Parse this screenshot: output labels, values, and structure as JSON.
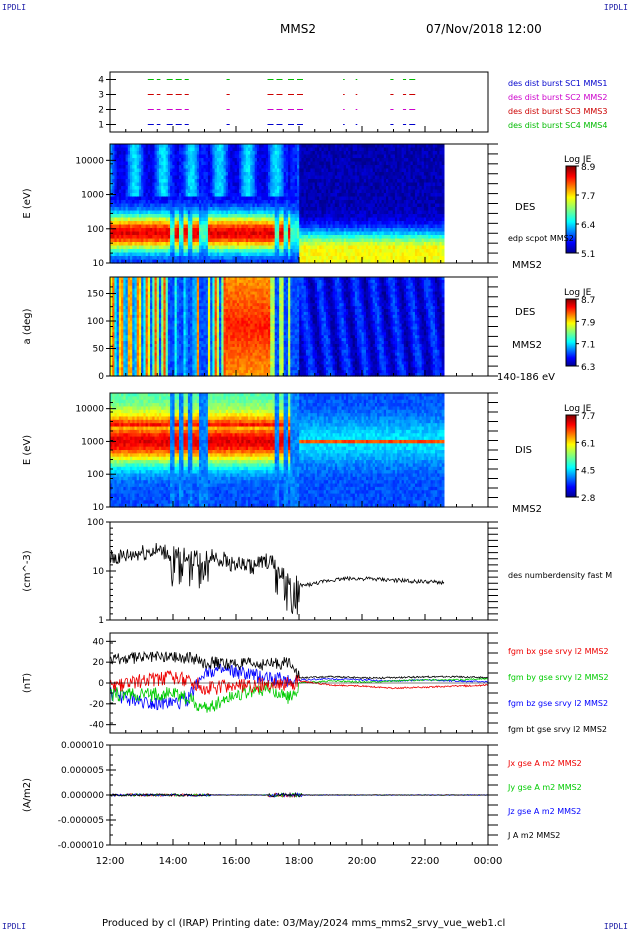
{
  "page": {
    "corner_tl": "IPDLI",
    "corner_tr": "IPDLI",
    "corner_bl": "IPDLI",
    "corner_br": "IPDLI",
    "spacecraft": "MMS2",
    "datetime": "07/Nov/2018 12:00",
    "footer": "Produced by cl (IRAP)   Printing date: 03/May/2024   mms_mms2_srvy_vue_web1.cl"
  },
  "colors": {
    "mms1": "#0000cc",
    "mms2": "#cc00cc",
    "mms3": "#cc0000",
    "mms4": "#00bb00",
    "bx": "#ee0000",
    "by": "#00cc00",
    "bz": "#0000ff",
    "bt": "#000000"
  },
  "xaxis": {
    "tick_labels": [
      "12:00",
      "14:00",
      "16:00",
      "18:00",
      "20:00",
      "22:00",
      "00:00"
    ],
    "hours": [
      12,
      14,
      16,
      18,
      20,
      22,
      24
    ]
  },
  "chart_data": [
    {
      "type": "scatter",
      "id": "burst",
      "yticks": [
        "1",
        "2",
        "3",
        "4"
      ],
      "ylim": [
        0.5,
        4.5
      ],
      "legend": [
        "des dist burst SC1 MMS1",
        "des dist burst SC2 MMS2",
        "des dist burst SC3 MMS3",
        "des dist burst SC4 MMS4"
      ],
      "intervals": [
        [
          13.2,
          13.6
        ],
        [
          13.8,
          14.5
        ],
        [
          15.7,
          15.8
        ],
        [
          17.0,
          17.5
        ],
        [
          17.65,
          18.2
        ],
        [
          19.4,
          19.45
        ],
        [
          19.8,
          19.85
        ],
        [
          20.9,
          21.0
        ],
        [
          21.3,
          21.4
        ],
        [
          21.5,
          21.7
        ]
      ]
    },
    {
      "type": "heatmap",
      "id": "des_energy",
      "ylabel": "E (eV)",
      "yticks": [
        "10",
        "100",
        "1000",
        "10000"
      ],
      "instrument": "DES",
      "side_label_a": "edp scpot MMS2",
      "side_label_b": "MMS2",
      "colorbar_title": "Log JE",
      "colorbar_ticks": [
        "8.9",
        "7.7",
        "6.4",
        "5.1"
      ],
      "peak_energy_ev": 75,
      "data_end_hour": 22.6
    },
    {
      "type": "heatmap",
      "id": "des_pitch",
      "ylabel": "a (deg)",
      "yticks": [
        "0",
        "50",
        "100",
        "150"
      ],
      "ylim": [
        0,
        180
      ],
      "instrument": "DES",
      "side_label_a": "MMS2",
      "side_label_b": "140-186 eV",
      "colorbar_title": "Log JE",
      "colorbar_ticks": [
        "8.7",
        "7.9",
        "7.1",
        "6.3"
      ],
      "data_end_hour": 22.6
    },
    {
      "type": "heatmap",
      "id": "dis_energy",
      "ylabel": "E (eV)",
      "yticks": [
        "10",
        "100",
        "1000",
        "10000"
      ],
      "instrument": "DIS",
      "side_label_b": "MMS2",
      "colorbar_title": "Log JE",
      "colorbar_ticks": [
        "7.7",
        "6.1",
        "4.5",
        "2.8"
      ],
      "peak_energy_ev": 1000,
      "data_end_hour": 22.6
    },
    {
      "type": "line",
      "id": "density",
      "ylabel": "(cm^-3)",
      "yticks": [
        "1",
        "10",
        "100"
      ],
      "ylim_log": [
        1,
        100
      ],
      "legend": [
        "des numberdensity fast M"
      ],
      "x": [
        12.0,
        12.5,
        13.0,
        13.5,
        14.0,
        14.5,
        14.8,
        15.0,
        15.3,
        15.8,
        16.5,
        17.0,
        17.2,
        17.5,
        17.9,
        18.1,
        18.5,
        19.0,
        19.5,
        20.0,
        21.0,
        22.0,
        22.6
      ],
      "y": [
        18,
        20,
        24,
        26,
        22,
        20,
        18,
        22,
        20,
        15,
        12,
        16,
        14,
        8,
        6,
        5,
        5.5,
        6.5,
        7,
        7,
        6.5,
        6,
        5.8
      ]
    },
    {
      "type": "line",
      "id": "bfield",
      "ylabel": "(nT)",
      "yticks": [
        "-40",
        "-20",
        "0",
        "20",
        "40"
      ],
      "ylim": [
        -48,
        48
      ],
      "legend": [
        "fgm bx gse srvy l2 MMS2",
        "fgm by gse srvy l2 MMS2",
        "fgm bz gse srvy l2 MMS2",
        "fgm bt gse srvy l2 MMS2"
      ],
      "x": [
        12.0,
        13.0,
        14.0,
        14.5,
        15.0,
        16.0,
        17.0,
        17.8,
        18.0,
        19.0,
        20.0,
        21.0,
        22.0,
        23.0,
        24.0
      ],
      "bx": [
        -5,
        2,
        5,
        3,
        -5,
        -3,
        -2,
        0,
        2,
        -2,
        -3,
        -5,
        -4,
        -3,
        -2
      ],
      "by": [
        -10,
        -12,
        -10,
        -15,
        -25,
        -10,
        -5,
        -15,
        0,
        2,
        1,
        2,
        3,
        3,
        4
      ],
      "bz": [
        -10,
        -18,
        -20,
        -15,
        12,
        10,
        5,
        2,
        3,
        4,
        3,
        2,
        3,
        2,
        1
      ],
      "bt": [
        22,
        25,
        26,
        24,
        20,
        18,
        18,
        20,
        5,
        6,
        5,
        5,
        6,
        6,
        5
      ]
    },
    {
      "type": "line",
      "id": "current",
      "ylabel": "(A/m2)",
      "yticks": [
        "-0.000010",
        "-0.000005",
        "0.000000",
        "0.000005",
        "0.000010"
      ],
      "ylim": [
        -1e-05,
        1e-05
      ],
      "legend": [
        "Jx gse A m2 MMS2",
        "Jy gse A m2 MMS2",
        "Jz gse A m2 MMS2",
        "J A m2 MMS2"
      ],
      "x": [
        12.0,
        15.0,
        17.0,
        18.0,
        24.0
      ],
      "y": [
        0.0,
        0.0,
        0.0,
        0.0,
        0.0
      ]
    }
  ]
}
